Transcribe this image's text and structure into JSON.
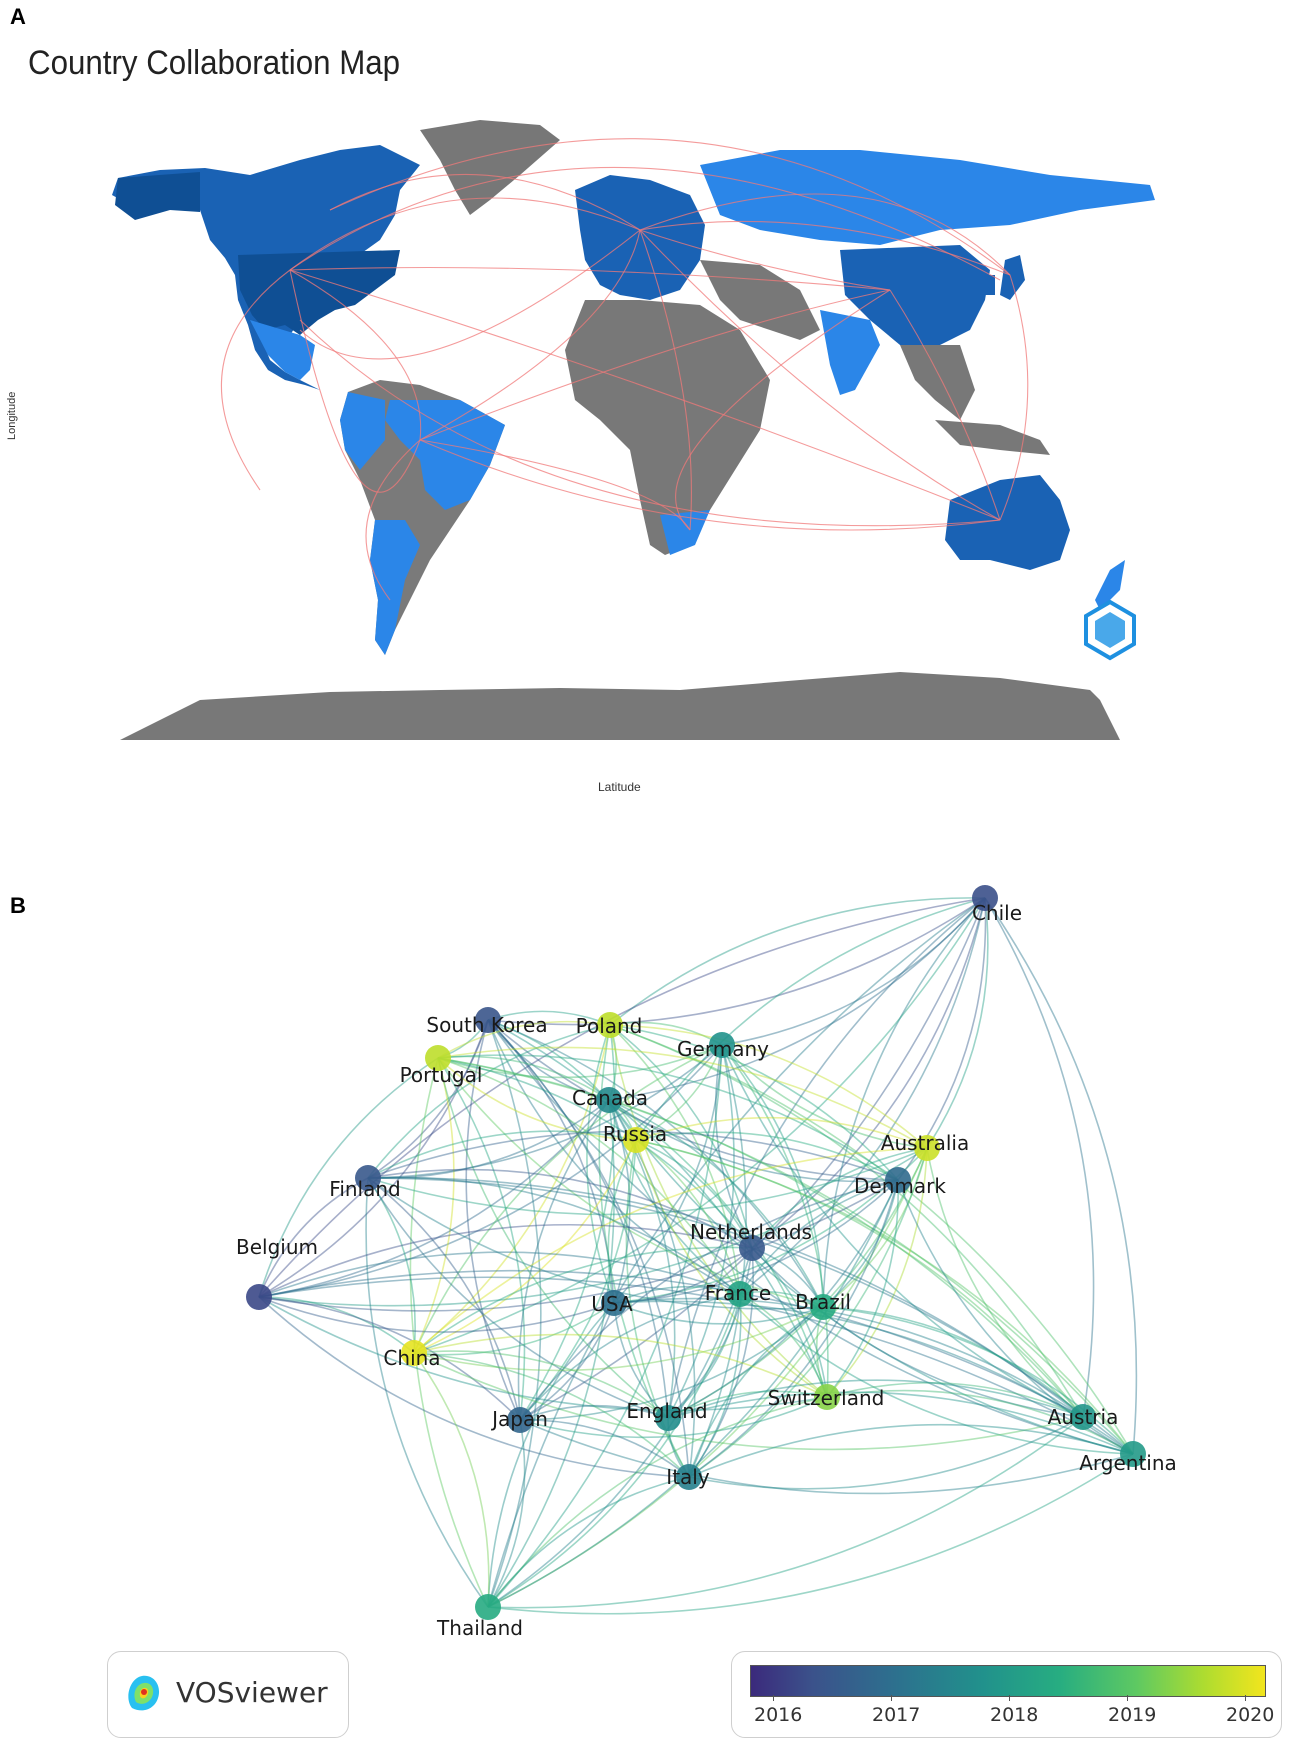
{
  "panel_a": {
    "label": "A",
    "title": "Country Collaboration Map",
    "xlabel": "Latitude",
    "ylabel": "Longitude"
  },
  "panel_b": {
    "label": "B",
    "branding": "VOSviewer",
    "colors": {
      "node_low": "#3b528b",
      "node_high": "#e7e419"
    },
    "nodes": [
      {
        "name": "Chile",
        "year": 2016.3
      },
      {
        "name": "South Korea",
        "year": 2016.4
      },
      {
        "name": "Poland",
        "year": 2019.8
      },
      {
        "name": "Germany",
        "year": 2017.8
      },
      {
        "name": "Portugal",
        "year": 2019.8
      },
      {
        "name": "Canada",
        "year": 2017.6
      },
      {
        "name": "Russia",
        "year": 2020.0
      },
      {
        "name": "Australia",
        "year": 2019.9
      },
      {
        "name": "Finland",
        "year": 2016.5
      },
      {
        "name": "Denmark",
        "year": 2016.9
      },
      {
        "name": "Belgium",
        "year": 2016.2
      },
      {
        "name": "Netherlands",
        "year": 2016.5
      },
      {
        "name": "USA",
        "year": 2017.0
      },
      {
        "name": "France",
        "year": 2018.2
      },
      {
        "name": "Brazil",
        "year": 2018.4
      },
      {
        "name": "China",
        "year": 2020.1
      },
      {
        "name": "Switzerland",
        "year": 2019.4
      },
      {
        "name": "Japan",
        "year": 2016.8
      },
      {
        "name": "England",
        "year": 2017.7
      },
      {
        "name": "Austria",
        "year": 2017.9
      },
      {
        "name": "Italy",
        "year": 2017.4
      },
      {
        "name": "Argentina",
        "year": 2018.0
      },
      {
        "name": "Thailand",
        "year": 2018.4
      }
    ],
    "legend": {
      "ticks": [
        "2016",
        "2017",
        "2018",
        "2019",
        "2020"
      ]
    }
  }
}
